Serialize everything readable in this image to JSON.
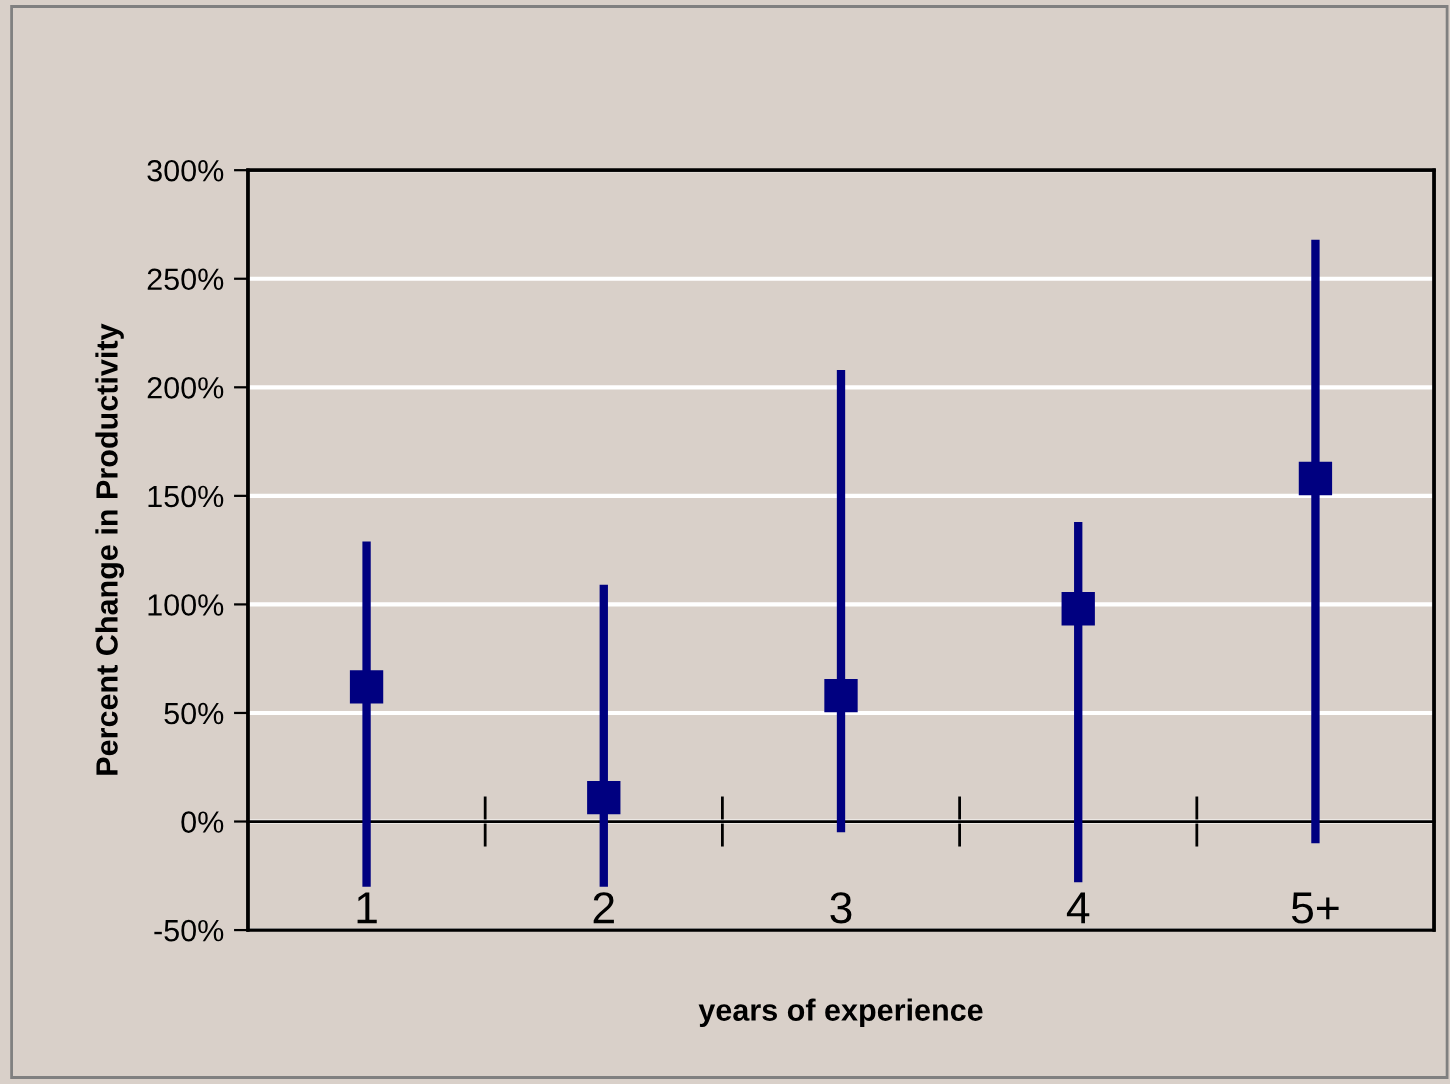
{
  "chart_data": {
    "type": "scatter",
    "xlabel": "years of experience",
    "ylabel": "Percent Change in Productivity",
    "categories": [
      "1",
      "2",
      "3",
      "4",
      "5+"
    ],
    "series": [
      {
        "color": "#000080",
        "values": [
          62,
          11,
          58,
          98,
          158
        ],
        "errors": [
          [
            -30,
            129
          ],
          [
            -30,
            109
          ],
          [
            -5,
            208
          ],
          [
            -28,
            138
          ],
          [
            -10,
            268
          ]
        ]
      }
    ],
    "ylim": [
      -50,
      300
    ],
    "yticks": [
      {
        "value": -50,
        "label": "-50%"
      },
      {
        "value": 0,
        "label": "0%"
      },
      {
        "value": 50,
        "label": "50%"
      },
      {
        "value": 100,
        "label": "100%"
      },
      {
        "value": 150,
        "label": "150%"
      },
      {
        "value": 200,
        "label": "200%"
      },
      {
        "value": 250,
        "label": "250%"
      },
      {
        "value": 300,
        "label": "300%"
      }
    ],
    "grid": "y",
    "marker": "square"
  }
}
